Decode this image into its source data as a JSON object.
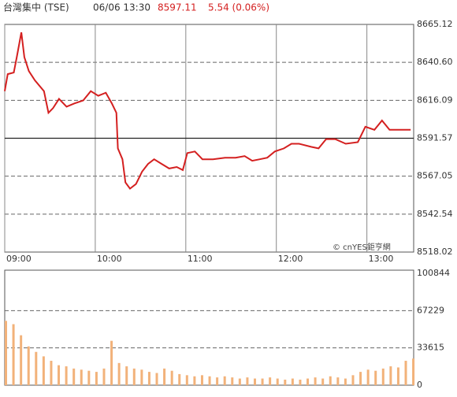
{
  "header": {
    "name": "台灣集中 (TSE)",
    "datetime": "06/06 13:30",
    "price": "8597.11",
    "change": "5.54 (0.06%)"
  },
  "watermark": "© cnYES鉅亨網",
  "chart_data": [
    {
      "type": "line",
      "color": "#d42020",
      "x": [
        0,
        2,
        6,
        8,
        11,
        13,
        16,
        20,
        26,
        29,
        32,
        36,
        41,
        46,
        52,
        57,
        62,
        67,
        71,
        74,
        75,
        78,
        80,
        83,
        87,
        91,
        95,
        99,
        104,
        109,
        114,
        118,
        121,
        126,
        131,
        138,
        146,
        153,
        159,
        164,
        169,
        174,
        179,
        185,
        190,
        195,
        203,
        208,
        213,
        219,
        226,
        234,
        239,
        245,
        250,
        255,
        260,
        266,
        269
      ],
      "values": [
        8622,
        8633,
        8634,
        8644,
        8660,
        8644,
        8635,
        8629,
        8622,
        8608,
        8611,
        8617,
        8612,
        8614,
        8616,
        8622,
        8619,
        8621,
        8614,
        8608,
        8585,
        8578,
        8563,
        8559,
        8562,
        8570,
        8575,
        8578,
        8575,
        8572,
        8573,
        8571,
        8582,
        8583,
        8578,
        8578,
        8579,
        8579,
        8580,
        8577,
        8578,
        8579,
        8583,
        8585,
        8588,
        8588,
        8586,
        8585,
        8591,
        8591,
        8588,
        8589,
        8599,
        8597,
        8603,
        8597,
        8597,
        8597,
        8597
      ],
      "xlim": [
        0,
        271
      ],
      "ylim": [
        8518.02,
        8665.12
      ],
      "yticks": [
        8518.02,
        8542.54,
        8567.05,
        8591.57,
        8616.09,
        {
          "value": 8640.6,
          "label": "8640.60"
        },
        8665.12
      ],
      "reference_line": 8591.57,
      "xticks": [
        {
          "value": 0,
          "label": "09:00"
        },
        {
          "value": 60,
          "label": "10:00"
        },
        {
          "value": 120,
          "label": "11:00"
        },
        {
          "value": 180,
          "label": "12:00"
        },
        {
          "value": 240,
          "label": "13:00"
        }
      ]
    },
    {
      "type": "bar",
      "color": "#f2b27a",
      "x": [
        0,
        5,
        10,
        15,
        20,
        25,
        30,
        35,
        40,
        45,
        50,
        55,
        60,
        65,
        70,
        75,
        80,
        85,
        90,
        95,
        100,
        105,
        110,
        115,
        120,
        125,
        130,
        135,
        140,
        145,
        150,
        155,
        160,
        165,
        170,
        175,
        180,
        185,
        190,
        195,
        200,
        205,
        210,
        215,
        220,
        225,
        230,
        235,
        240,
        245,
        250,
        255,
        260,
        265,
        270
      ],
      "values": [
        58000,
        55000,
        45000,
        35000,
        30000,
        26000,
        22000,
        18000,
        17000,
        15000,
        14000,
        13000,
        12000,
        15000,
        40000,
        20000,
        17000,
        15000,
        14000,
        12000,
        11000,
        15000,
        13000,
        10000,
        9000,
        8000,
        9000,
        8000,
        7000,
        8000,
        7000,
        6000,
        7000,
        6000,
        6000,
        7000,
        6000,
        5000,
        6000,
        5000,
        6000,
        7000,
        6000,
        8000,
        7000,
        6000,
        9000,
        12000,
        14000,
        13000,
        15000,
        17000,
        16000,
        22000,
        24000
      ],
      "xlim": [
        0,
        271
      ],
      "ylim": [
        0,
        100844
      ],
      "yticks": [
        0,
        33615,
        67229,
        100844
      ]
    }
  ]
}
